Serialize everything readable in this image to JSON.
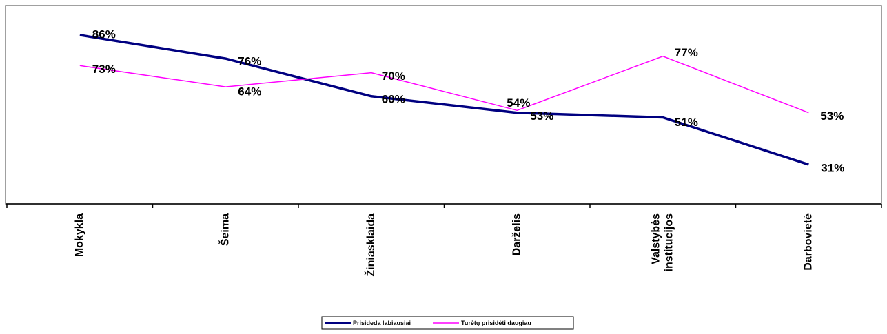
{
  "chart_data": {
    "type": "line",
    "categories": [
      [
        "Mokykla"
      ],
      [
        "Šeima"
      ],
      [
        "Žiniasklaida"
      ],
      [
        "Darželis"
      ],
      [
        "Valstybės",
        "institucijos"
      ],
      [
        "Darbovietė"
      ]
    ],
    "series": [
      {
        "name": "Prisideda labiausiai",
        "values": [
          86,
          76,
          60,
          53,
          51,
          31
        ],
        "labels": [
          "86%",
          "76%",
          "60%",
          "53%",
          "51%",
          "31%"
        ],
        "color": "#000080"
      },
      {
        "name": "Turėtų prisidėti daugiau",
        "values": [
          73,
          64,
          70,
          54,
          77,
          53
        ],
        "labels": [
          "73%",
          "64%",
          "70%",
          "54%",
          "77%",
          "53%"
        ],
        "color": "#FF00FF"
      }
    ],
    "ylim": [
      0,
      100
    ],
    "grid": false,
    "legend": "bottom-center"
  }
}
